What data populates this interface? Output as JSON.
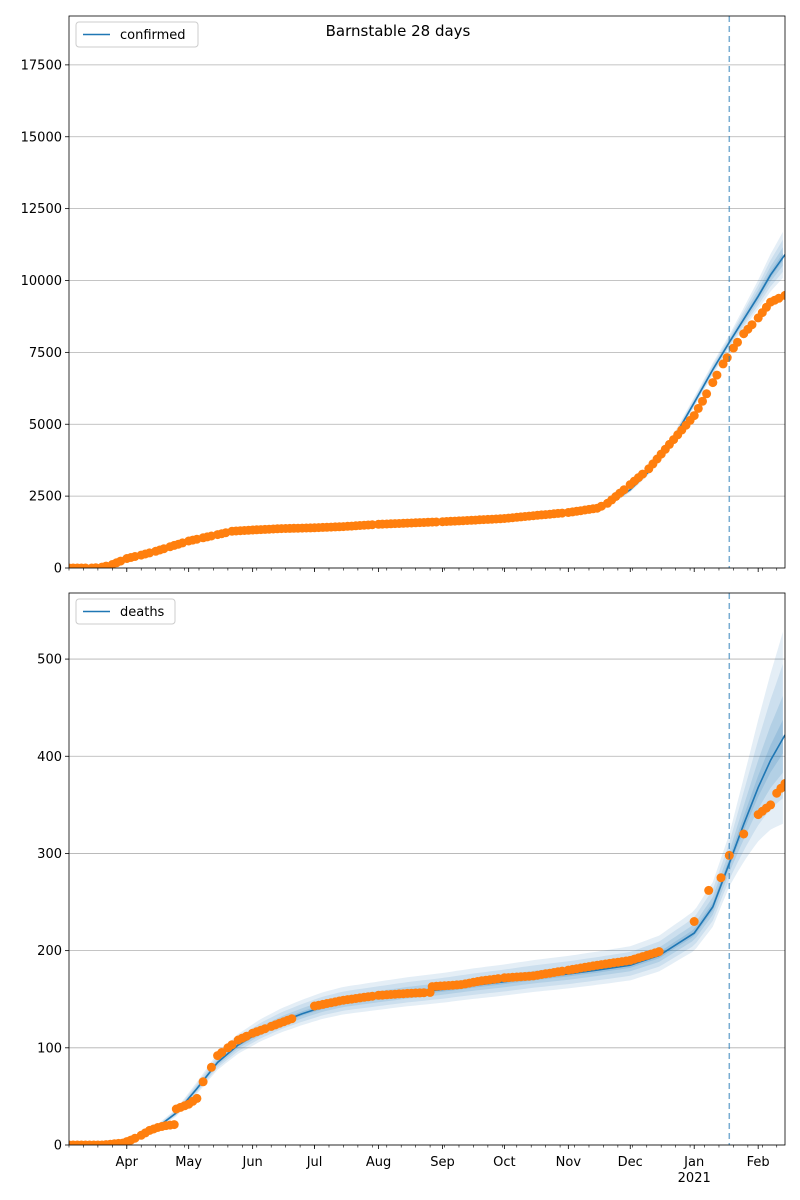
{
  "figure": {
    "title": "Barnstable 28 days"
  },
  "chart_data": [
    {
      "type": "line",
      "title": "Barnstable 28 days",
      "xlabel": "",
      "ylabel": "",
      "legend": "top-left",
      "grid": "horizontal",
      "xlim": [
        "2020-03-04",
        "2021-02-14"
      ],
      "ylim": [
        0,
        19200
      ],
      "yticks": [
        0,
        2500,
        5000,
        7500,
        10000,
        12500,
        15000,
        17500
      ],
      "forecast_start": "2021-01-18",
      "series": [
        {
          "name": "confirmed",
          "style": "line",
          "x": [
            "2020-03-04",
            "2020-03-15",
            "2020-03-25",
            "2020-04-05",
            "2020-04-15",
            "2020-05-01",
            "2020-05-15",
            "2020-06-01",
            "2020-06-15",
            "2020-07-01",
            "2020-07-15",
            "2020-08-01",
            "2020-08-15",
            "2020-09-01",
            "2020-09-15",
            "2020-10-01",
            "2020-10-15",
            "2020-11-01",
            "2020-11-15",
            "2020-11-20",
            "2020-12-01",
            "2020-12-10",
            "2020-12-20",
            "2021-01-01",
            "2021-01-10",
            "2021-01-18",
            "2021-01-25",
            "2021-02-01",
            "2021-02-07",
            "2021-02-14"
          ],
          "values": [
            0,
            30,
            120,
            380,
            600,
            950,
            1180,
            1360,
            1420,
            1450,
            1480,
            1540,
            1580,
            1640,
            1690,
            1760,
            1860,
            1980,
            2130,
            2200,
            2720,
            3350,
            4250,
            5750,
            6900,
            7850,
            8650,
            9450,
            10200,
            10900
          ]
        },
        {
          "name": "",
          "style": "markers",
          "x": [
            "2020-03-04",
            "2020-03-15",
            "2020-03-20",
            "2020-03-25",
            "2020-04-01",
            "2020-04-08",
            "2020-04-15",
            "2020-04-22",
            "2020-05-01",
            "2020-05-08",
            "2020-05-15",
            "2020-05-22",
            "2020-06-01",
            "2020-06-15",
            "2020-07-01",
            "2020-07-15",
            "2020-08-01",
            "2020-08-15",
            "2020-09-01",
            "2020-09-15",
            "2020-10-01",
            "2020-10-15",
            "2020-11-01",
            "2020-11-15",
            "2020-11-20",
            "2020-12-01",
            "2020-12-10",
            "2020-12-20",
            "2021-01-01",
            "2021-01-05",
            "2021-01-10",
            "2021-01-15",
            "2021-01-20",
            "2021-01-25",
            "2021-02-01",
            "2021-02-07",
            "2021-02-14"
          ],
          "values": [
            0,
            0,
            30,
            120,
            330,
            450,
            580,
            740,
            940,
            1050,
            1160,
            1280,
            1320,
            1370,
            1400,
            1440,
            1520,
            1560,
            1610,
            1660,
            1720,
            1820,
            1930,
            2080,
            2250,
            2900,
            3450,
            4300,
            5300,
            5800,
            6450,
            7100,
            7650,
            8150,
            8700,
            9250,
            9480
          ]
        }
      ]
    },
    {
      "type": "line",
      "title": "",
      "xlabel": "",
      "ylabel": "",
      "legend": "top-left",
      "grid": "horizontal",
      "xlim": [
        "2020-03-04",
        "2021-02-14"
      ],
      "ylim": [
        0,
        568
      ],
      "yticks": [
        0,
        100,
        200,
        300,
        400,
        500
      ],
      "xticks": [
        {
          "date": "2020-04-01",
          "label": "Apr"
        },
        {
          "date": "2020-05-01",
          "label": "May"
        },
        {
          "date": "2020-06-01",
          "label": "Jun"
        },
        {
          "date": "2020-07-01",
          "label": "Jul"
        },
        {
          "date": "2020-08-01",
          "label": "Aug"
        },
        {
          "date": "2020-09-01",
          "label": "Sep"
        },
        {
          "date": "2020-10-01",
          "label": "Oct"
        },
        {
          "date": "2020-11-01",
          "label": "Nov"
        },
        {
          "date": "2020-12-01",
          "label": "Dec"
        },
        {
          "date": "2021-01-01",
          "label": "Jan",
          "sublabel": "2021"
        },
        {
          "date": "2021-02-01",
          "label": "Feb"
        }
      ],
      "forecast_start": "2021-01-18",
      "series": [
        {
          "name": "deaths",
          "style": "line",
          "x": [
            "2020-03-04",
            "2020-03-20",
            "2020-04-01",
            "2020-04-15",
            "2020-04-25",
            "2020-05-05",
            "2020-05-15",
            "2020-05-25",
            "2020-06-05",
            "2020-06-15",
            "2020-06-25",
            "2020-07-05",
            "2020-07-15",
            "2020-08-01",
            "2020-08-15",
            "2020-09-01",
            "2020-09-15",
            "2020-10-01",
            "2020-10-15",
            "2020-11-01",
            "2020-11-15",
            "2020-12-01",
            "2020-12-15",
            "2021-01-01",
            "2021-01-10",
            "2021-01-18",
            "2021-01-25",
            "2021-02-01",
            "2021-02-07",
            "2021-02-14"
          ],
          "values": [
            0,
            1,
            5,
            17,
            33,
            58,
            85,
            103,
            117,
            127,
            135,
            142,
            147,
            152,
            156,
            160,
            164,
            168,
            172,
            176,
            180,
            185,
            195,
            218,
            245,
            290,
            330,
            368,
            396,
            422
          ]
        },
        {
          "name": "",
          "style": "markers",
          "x": [
            "2020-03-04",
            "2020-03-20",
            "2020-03-30",
            "2020-04-03",
            "2020-04-08",
            "2020-04-12",
            "2020-04-16",
            "2020-04-20",
            "2020-04-24",
            "2020-04-25",
            "2020-05-01",
            "2020-05-05",
            "2020-05-08",
            "2020-05-12",
            "2020-05-15",
            "2020-05-20",
            "2020-05-25",
            "2020-06-01",
            "2020-06-10",
            "2020-06-20",
            "2020-07-01",
            "2020-07-15",
            "2020-08-01",
            "2020-08-15",
            "2020-08-26",
            "2020-08-27",
            "2020-09-10",
            "2020-09-20",
            "2020-10-01",
            "2020-10-15",
            "2020-11-01",
            "2020-11-15",
            "2020-12-01",
            "2020-12-15",
            "2021-01-01",
            "2021-01-08",
            "2021-01-14",
            "2021-01-18",
            "2021-01-25",
            "2021-02-01",
            "2021-02-07",
            "2021-02-10",
            "2021-02-14"
          ],
          "values": [
            0,
            0,
            2,
            5,
            10,
            15,
            18,
            20,
            21,
            37,
            42,
            48,
            65,
            80,
            92,
            100,
            108,
            115,
            122,
            130,
            143,
            149,
            154,
            156,
            157,
            163,
            165,
            169,
            172,
            174,
            180,
            185,
            190,
            199,
            230,
            262,
            275,
            298,
            320,
            340,
            350,
            362,
            372
          ]
        }
      ]
    }
  ]
}
